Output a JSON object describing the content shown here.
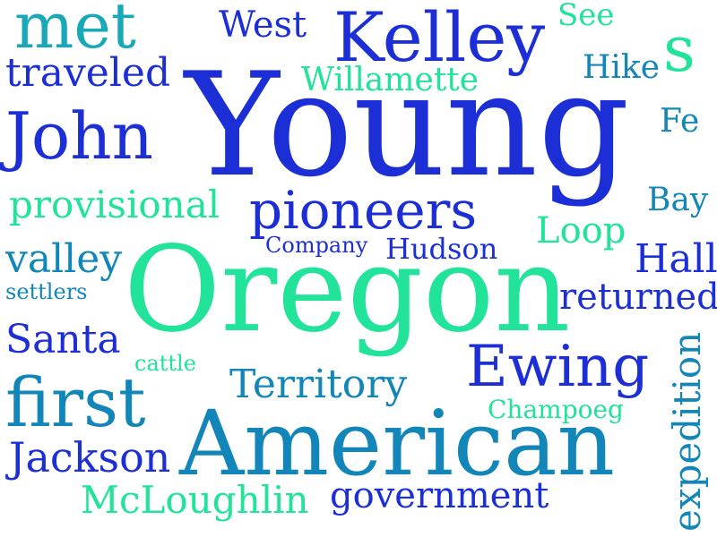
{
  "colors": {
    "background": "#ffffff",
    "blue": "#1c2fd6",
    "teal": "#1286b8",
    "green": "#21e39a",
    "cyan": "#19a8b7"
  },
  "words": {
    "young": "Young",
    "oregon": "Oregon",
    "american": "American",
    "kelley": "Kelley",
    "john": "John",
    "pioneers": "pioneers",
    "first": "first",
    "ewing": "Ewing",
    "met": "met",
    "traveled": "traveled",
    "west": "West",
    "willamette": "Willamette",
    "see": "See",
    "s": "s",
    "hike": "Hike",
    "fe": "Fe",
    "provisional": "provisional",
    "bay": "Bay",
    "loop": "Loop",
    "company": "Company",
    "hudson": "Hudson",
    "valley": "valley",
    "hall": "Hall",
    "settlers": "settlers",
    "returned": "returned",
    "santa": "Santa",
    "cattle": "cattle",
    "territory": "Territory",
    "expedition": "expedition",
    "champoeg": "Champoeg",
    "jackson": "Jackson",
    "mcloughlin": "McLoughlin",
    "government": "government"
  }
}
